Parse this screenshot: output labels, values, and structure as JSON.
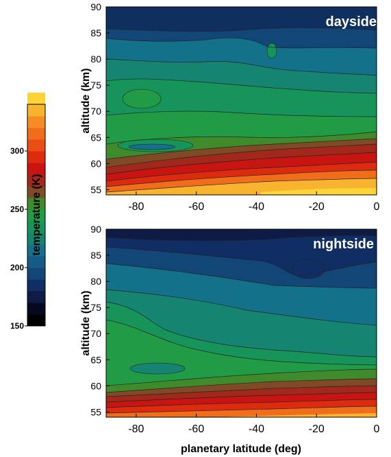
{
  "chart_data": {
    "type": "contour",
    "colorbar": {
      "label": "temperature (K)",
      "ticks": [
        300,
        250,
        200,
        150
      ],
      "range": [
        150,
        340
      ],
      "step": 10,
      "colors": [
        "#000000",
        "#06091e",
        "#0e1b44",
        "#102e63",
        "#124676",
        "#145b86",
        "#14718a",
        "#158571",
        "#17945a",
        "#219b45",
        "#3f8b2c",
        "#814a27",
        "#a3281c",
        "#c81512",
        "#dd2b10",
        "#ea4e15",
        "#f06d1c",
        "#f58d24",
        "#f9b42f",
        "#fcd43a"
      ]
    },
    "panels": [
      {
        "label": "dayside",
        "xlabel": "",
        "ylabel": "altitude (km)",
        "xlim": [
          -90,
          0
        ],
        "ylim": [
          54,
          90
        ],
        "xticks": [
          "-80",
          "-60",
          "-40",
          "-20",
          "0"
        ],
        "yticks": [
          "90",
          "85",
          "80",
          "75",
          "70",
          "65",
          "60",
          "55"
        ],
        "levels_approx_K": [
          {
            "altitude_km": 89,
            "temperature_K": 200
          },
          {
            "altitude_km": 84,
            "temperature_K": 210
          },
          {
            "altitude_km": 79,
            "temperature_K": 220
          },
          {
            "altitude_km": 74,
            "temperature_K": 228
          },
          {
            "altitude_km": 69,
            "temperature_K": 235
          },
          {
            "altitude_km": 65,
            "temperature_K": 238
          },
          {
            "altitude_km": 62,
            "temperature_K": 250
          },
          {
            "altitude_km": 58,
            "temperature_K": 280
          },
          {
            "altitude_km": 55,
            "temperature_K": 320
          }
        ]
      },
      {
        "label": "nightside",
        "xlabel": "planetary latitude (deg)",
        "ylabel": "altitude (km)",
        "xlim": [
          -90,
          0
        ],
        "ylim": [
          54,
          90
        ],
        "xticks": [
          "-80",
          "-60",
          "-40",
          "-20",
          "0"
        ],
        "yticks": [
          "90",
          "85",
          "80",
          "75",
          "70",
          "65",
          "60",
          "55"
        ],
        "levels_approx_K": [
          {
            "altitude_km": 89,
            "temperature_K": 175
          },
          {
            "altitude_km": 84,
            "temperature_K": 195
          },
          {
            "altitude_km": 79,
            "temperature_K": 215
          },
          {
            "altitude_km": 74,
            "temperature_K": 228
          },
          {
            "altitude_km": 69,
            "temperature_K": 235
          },
          {
            "altitude_km": 65,
            "temperature_K": 238
          },
          {
            "altitude_km": 62,
            "temperature_K": 250
          },
          {
            "altitude_km": 58,
            "temperature_K": 275
          },
          {
            "altitude_km": 55,
            "temperature_K": 305
          }
        ]
      }
    ]
  }
}
